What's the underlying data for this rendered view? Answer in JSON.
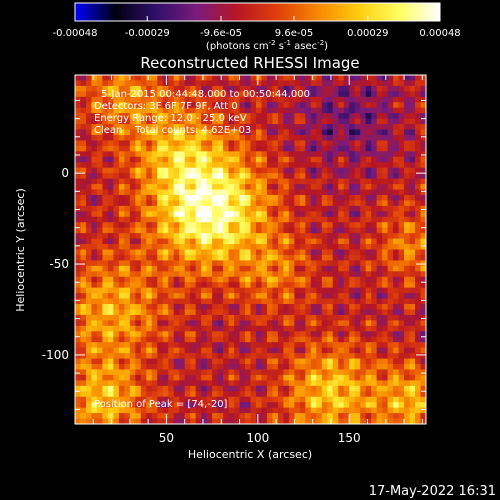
{
  "chart_data": {
    "type": "heatmap",
    "title": "Reconstructed RHESSI Image",
    "xlabel": "Heliocentric X (arcsec)",
    "ylabel": "Heliocentric Y (arcsec)",
    "xlim": [
      0,
      192
    ],
    "ylim": [
      -138,
      54
    ],
    "x_ticks": [
      50,
      100,
      150
    ],
    "y_ticks": [
      0,
      -50,
      -100
    ],
    "colorbar": {
      "label_html": "(photons cm<tspan dy='-4' font-size='7'>-2</tspan><tspan dy='4'> s</tspan><tspan dy='-4' font-size='7'>-1</tspan><tspan dy='4'> asec</tspan><tspan dy='-4' font-size='7'>-2</tspan><tspan dy='4'>)</tspan>",
      "min": -0.00048,
      "max": 0.00048,
      "ticks": [
        "-0.00048",
        "-0.00029",
        "-9.6e-05",
        "9.6e-05",
        "0.00029",
        "0.00048"
      ],
      "colormap": [
        "#0000ff",
        "#000010",
        "#30106a",
        "#7a1b7c",
        "#b81622",
        "#e0400a",
        "#f88800",
        "#ffcc10",
        "#ffff60",
        "#ffffff"
      ]
    },
    "annotations": [
      "5-Jan-2015 00:44:48.000 to 00:50:44.000",
      "Detectors: 3F 6F 7F 9F, Att 0",
      "Energy Range: 12.0 - 25.0 keV",
      "Clean    Total counts: 4.62E+03"
    ],
    "peak_label": "Position of Peak = [74,-20]",
    "peak": [
      74,
      -20
    ],
    "sources": [
      {
        "x": 74,
        "y": -20,
        "amp": 0.00048,
        "sigma": 22
      },
      {
        "x": 55,
        "y": 15,
        "amp": 0.00022,
        "sigma": 18
      },
      {
        "x": 25,
        "y": 45,
        "amp": 0.0002,
        "sigma": 16
      },
      {
        "x": 20,
        "y": -75,
        "amp": 0.00025,
        "sigma": 20
      },
      {
        "x": 15,
        "y": -125,
        "amp": 0.00028,
        "sigma": 16
      },
      {
        "x": 140,
        "y": -120,
        "amp": 0.0003,
        "sigma": 18
      },
      {
        "x": 185,
        "y": -125,
        "amp": 0.00026,
        "sigma": 14
      },
      {
        "x": 110,
        "y": -55,
        "amp": 0.00016,
        "sigma": 14
      },
      {
        "x": 185,
        "y": -40,
        "amp": 0.00018,
        "sigma": 14
      },
      {
        "x": 150,
        "y": 30,
        "amp": -0.00012,
        "sigma": 20
      }
    ]
  },
  "footer": {
    "timestamp": "17-May-2022 16:31"
  }
}
